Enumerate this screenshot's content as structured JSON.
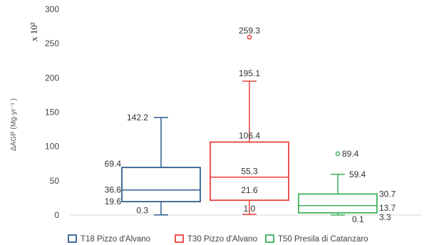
{
  "chart_data": {
    "type": "box",
    "ylabel": "ΔAGP (Mg·yr⁻¹ )",
    "scale_note": "x 10²",
    "ylim": [
      0,
      300
    ],
    "yticks": [
      "0",
      "50",
      "100",
      "150",
      "200",
      "250",
      "300"
    ],
    "grid": false,
    "legend_position": "bottom",
    "series": [
      {
        "name": "T18 Pizzo d'Alvano",
        "color": "#2f5f8f",
        "min": 0.3,
        "q1": 19.6,
        "median": 36.6,
        "q3": 69.4,
        "max": 142.2,
        "outliers": [],
        "labels": {
          "min": "0.3",
          "q1": "19.6",
          "median": "36.6",
          "q3": "69.4",
          "max": "142.2"
        }
      },
      {
        "name": "T30 Pizzo d'Alvano",
        "color": "#e8413c",
        "min": 1.0,
        "q1": 21.6,
        "median": 55.3,
        "q3": 106.4,
        "max": 195.1,
        "outliers": [
          259.3
        ],
        "labels": {
          "min": "1.0",
          "q1": "21.6",
          "median": "55.3",
          "q3": "106.4",
          "max": "195.1",
          "outlier": "259.3"
        }
      },
      {
        "name": "T50 Presila di Catanzaro",
        "color": "#3cb35a",
        "min": 0.1,
        "q1": 3.3,
        "median": 13.7,
        "q3": 30.7,
        "max": 59.4,
        "outliers": [
          89.4
        ],
        "labels": {
          "min": "0.1",
          "q1": "3.3",
          "median": "13.7",
          "q3": "30.7",
          "max": "59.4",
          "outlier": "89.4"
        }
      }
    ]
  }
}
